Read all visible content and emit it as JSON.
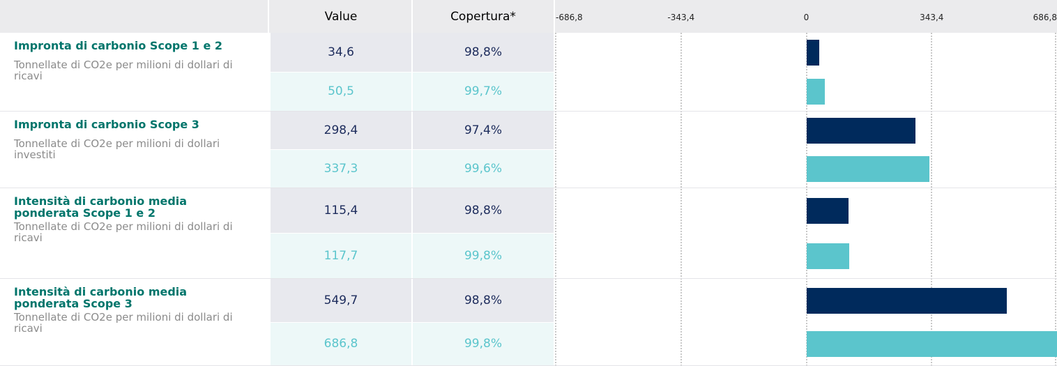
{
  "chart_data": {
    "type": "bar",
    "columns": [
      "Value",
      "Copertura*"
    ],
    "categories": [
      "Impronta di carbonio Scope 1 e 2",
      "Impronta di carbonio Scope 3",
      "Intensità di carbonio media ponderata Scope 1 e 2",
      "Intensità di carbonio media ponderata Scope 3"
    ],
    "subtitles": [
      "Tonnellate di CO2e per milioni di dollari di ricavi",
      "Tonnellate di CO2e per milioni di dollari investiti",
      "Tonnellate di CO2e per milioni di dollari di ricavi",
      "Tonnellate di CO2e per milioni di dollari di ricavi"
    ],
    "series": [
      {
        "color": "#002a5c",
        "values": [
          34.6,
          298.4,
          115.4,
          549.7
        ],
        "value_labels": [
          "34,6",
          "298,4",
          "115,4",
          "549,7"
        ],
        "coverage_labels": [
          "98,8%",
          "97,4%",
          "98,8%",
          "98,8%"
        ]
      },
      {
        "color": "#5bc5cc",
        "values": [
          50.5,
          337.3,
          117.7,
          686.8
        ],
        "value_labels": [
          "50,5",
          "337,3",
          "117,7",
          "686,8"
        ],
        "coverage_labels": [
          "99,7%",
          "99,6%",
          "99,8%",
          "99,8%"
        ]
      }
    ],
    "xlim": [
      -686.8,
      686.8
    ],
    "xticks": [
      {
        "value": -686.8,
        "label": "-686,8"
      },
      {
        "value": -343.4,
        "label": "-343,4"
      },
      0,
      {
        "value": 343.4,
        "label": "343,4"
      },
      {
        "value": 686.8,
        "label": "686,8"
      }
    ],
    "grid": true
  }
}
